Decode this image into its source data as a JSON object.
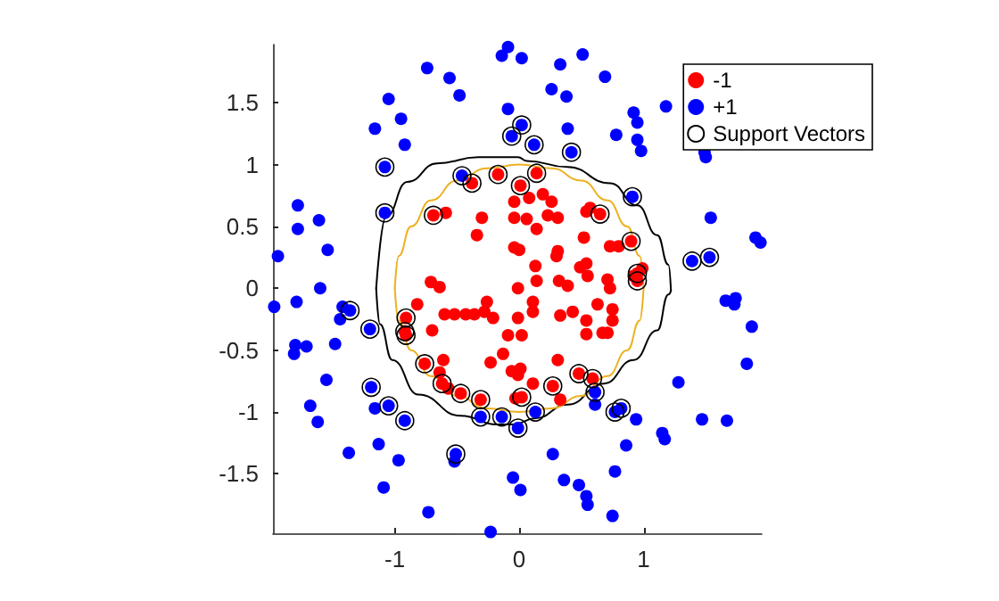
{
  "chart_data": {
    "type": "scatter",
    "xlim": [
      -1.98,
      1.95
    ],
    "ylim": [
      -1.98,
      1.97
    ],
    "xticks": [
      -1,
      0,
      1
    ],
    "yticks": [
      -1.5,
      -1,
      -0.5,
      0,
      0.5,
      1,
      1.5
    ],
    "legend": "top right",
    "marker": "circle",
    "series": [
      {
        "type": "line",
        "marker": "none",
        "color": "#000000",
        "x": [
          -1.15,
          -1.07,
          -0.9,
          -0.66,
          -0.33,
          -0.01,
          0.06,
          0.39,
          0.73,
          0.95,
          1.11,
          1.2,
          1.22
        ],
        "values": [
          0.0,
          0.58,
          0.86,
          1.01,
          1.06,
          1.06,
          1.03,
          0.98,
          0.85,
          0.67,
          0.43,
          0.19,
          -0.02
        ]
      },
      {
        "type": "line",
        "marker": "none",
        "color": "#000000",
        "x": [
          -1.15,
          -1.12,
          -1.02,
          -0.81,
          -0.47,
          -0.18,
          -0.04,
          0.13,
          0.39,
          0.68,
          0.92,
          1.11,
          1.2,
          1.22
        ],
        "values": [
          0.0,
          -0.29,
          -0.58,
          -0.86,
          -1.03,
          -1.1,
          -1.1,
          -1.05,
          -0.94,
          -0.77,
          -0.58,
          -0.34,
          -0.05,
          -0.02
        ]
      },
      {
        "type": "line",
        "marker": "none",
        "color": "#edb120",
        "x": [
          -1.0,
          -0.97,
          -0.87,
          -0.71,
          -0.5,
          -0.26,
          0.0,
          0.26,
          0.5,
          0.71,
          0.87,
          0.97,
          1.0
        ],
        "values": [
          0.0,
          0.26,
          0.5,
          0.71,
          0.87,
          0.97,
          1.0,
          0.97,
          0.87,
          0.71,
          0.5,
          0.26,
          0.0
        ]
      },
      {
        "type": "line",
        "marker": "none",
        "color": "#edb120",
        "x": [
          -1.0,
          -0.97,
          -0.87,
          -0.71,
          -0.5,
          -0.26,
          0.0,
          0.26,
          0.5,
          0.71,
          0.87,
          0.97,
          1.0
        ],
        "values": [
          0.0,
          -0.26,
          -0.5,
          -0.71,
          -0.87,
          -0.97,
          -1.0,
          -0.97,
          -0.87,
          -0.71,
          -0.5,
          -0.26,
          0.0
        ]
      },
      {
        "name": "-1",
        "color": "#ff0000",
        "x": [
          -0.38,
          -0.17,
          -0.69,
          0.14,
          0.01,
          0.65,
          0.9,
          0.95,
          0.95,
          -0.91,
          -0.92,
          -0.91,
          -0.76,
          -0.62,
          -0.47,
          -0.31,
          0.02,
          0.27,
          0.48,
          0.59,
          -0.59,
          -0.3,
          -0.34,
          -0.04,
          -0.04,
          -0.71,
          -0.64,
          -0.04,
          0.08,
          0.19,
          0.26,
          0.06,
          0.23,
          0.31,
          0.14,
          0.54,
          0.57,
          0.52,
          0.0,
          0.31,
          0.3,
          0.73,
          0.8,
          0.54,
          0.49,
          0.13,
          0.99,
          0.92,
          0.32,
          0.39,
          -0.01,
          0.14,
          0.55,
          0.73,
          0.71,
          -0.82,
          -0.7,
          -0.6,
          -0.52,
          -0.43,
          -0.36,
          -0.28,
          -0.26,
          -0.21,
          -0.09,
          -0.13,
          -0.23,
          -0.06,
          -0.61,
          -0.64,
          -0.57,
          -0.03,
          0.11,
          0.11,
          -0.01,
          0.33,
          0.43,
          0.54,
          0.63,
          0.75,
          0.75,
          0.54,
          0.67,
          0.71,
          0.02,
          0.01,
          -0.01,
          0.11,
          0.33,
          0.31
        ],
        "values": [
          0.85,
          0.92,
          0.59,
          0.93,
          0.83,
          0.6,
          0.38,
          0.12,
          0.06,
          -0.24,
          -0.35,
          -0.38,
          -0.61,
          -0.77,
          -0.85,
          -0.9,
          -0.88,
          -0.79,
          -0.69,
          -0.73,
          0.61,
          0.57,
          0.43,
          0.57,
          0.33,
          0.05,
          0.01,
          0.7,
          0.73,
          0.76,
          0.7,
          0.56,
          0.59,
          0.57,
          0.48,
          0.62,
          0.65,
          0.41,
          0.31,
          0.3,
          0.26,
          0.34,
          0.34,
          0.2,
          0.17,
          0.18,
          0.16,
          0.1,
          0.06,
          0.02,
          0.0,
          0.06,
          0.1,
          0.0,
          0.07,
          -0.13,
          -0.34,
          -0.21,
          -0.21,
          -0.21,
          -0.21,
          -0.19,
          -0.11,
          -0.24,
          -0.38,
          -0.53,
          -0.6,
          -0.67,
          -0.58,
          -0.68,
          -0.81,
          -0.89,
          -0.11,
          -0.19,
          -0.24,
          -0.22,
          -0.19,
          -0.26,
          -0.13,
          -0.17,
          -0.26,
          -0.37,
          -0.36,
          -0.36,
          -0.38,
          -0.65,
          -0.7,
          -0.77,
          -0.9,
          -0.58
        ]
      },
      {
        "name": "+1",
        "color": "#0000ff",
        "x": [
          -0.06,
          -1.08,
          -0.46,
          -1.08,
          0.02,
          0.12,
          0.42,
          0.91,
          1.39,
          1.53,
          -1.36,
          -1.2,
          -1.19,
          -1.05,
          -0.92,
          -0.51,
          -0.31,
          -0.14,
          0.61,
          0.77,
          0.82,
          0.13,
          -0.01,
          -0.09,
          -0.14,
          -0.74,
          -0.56,
          -0.48,
          -1.05,
          -0.95,
          -1.16,
          -0.92,
          -0.09,
          -1.78,
          -1.78,
          -1.61,
          -1.54,
          -1.94,
          -1.6,
          0.02,
          0.51,
          0.33,
          0.69,
          0.26,
          0.38,
          1.18,
          0.92,
          0.95,
          0.78,
          0.95,
          0.98,
          1.49,
          1.5,
          0.39,
          1.54,
          1.9,
          1.94,
          1.66,
          1.74,
          1.73,
          -1.97,
          -1.79,
          -1.42,
          -1.44,
          -1.8,
          -1.81,
          -1.71,
          -1.48,
          -1.55,
          -1.68,
          -1.62,
          -1.16,
          -1.37,
          -1.13,
          -0.97,
          -1.09,
          -0.52,
          -0.73,
          -0.23,
          -0.05,
          1.87,
          1.83,
          1.28,
          1.47,
          1.67,
          1.15,
          1.17,
          0.94,
          0.61,
          0.86,
          0.77,
          0.27,
          0.01,
          0.36,
          0.48,
          0.54,
          0.55,
          0.75
        ],
        "values": [
          1.23,
          0.98,
          0.91,
          0.61,
          1.32,
          1.16,
          1.1,
          0.74,
          0.22,
          0.25,
          -0.18,
          -0.33,
          -0.8,
          -0.95,
          -1.07,
          -1.34,
          -1.04,
          -1.04,
          -0.84,
          -1.0,
          -0.97,
          -1.0,
          -1.13,
          1.95,
          1.88,
          1.78,
          1.7,
          1.56,
          1.53,
          1.37,
          1.29,
          1.16,
          1.45,
          0.67,
          0.48,
          0.55,
          0.31,
          0.26,
          0.0,
          1.86,
          1.89,
          1.81,
          1.71,
          1.61,
          1.55,
          1.47,
          1.42,
          1.34,
          1.24,
          1.2,
          1.11,
          1.1,
          1.06,
          1.29,
          0.57,
          0.41,
          0.37,
          -0.1,
          -0.08,
          -0.13,
          -0.15,
          -0.11,
          -0.15,
          -0.25,
          -0.46,
          -0.53,
          -0.47,
          -0.45,
          -0.74,
          -0.95,
          -1.08,
          -0.97,
          -1.33,
          -1.26,
          -1.39,
          -1.61,
          -1.4,
          -1.81,
          -1.97,
          -1.53,
          -0.31,
          -0.61,
          -0.76,
          -1.06,
          -1.07,
          -1.17,
          -1.22,
          -1.06,
          -0.94,
          -1.27,
          -1.48,
          -1.34,
          -1.63,
          -1.55,
          -1.59,
          -1.68,
          -1.75,
          -1.84
        ]
      },
      {
        "name": "Support Vectors",
        "color": "#000000",
        "x": [
          -0.38,
          -0.17,
          -0.69,
          0.14,
          0.01,
          0.65,
          0.9,
          0.95,
          0.95,
          -0.91,
          -0.92,
          -0.91,
          -0.76,
          -0.62,
          -0.47,
          -0.31,
          0.02,
          0.27,
          0.48,
          0.59,
          -0.06,
          -1.08,
          -0.46,
          -1.08,
          0.02,
          0.12,
          0.42,
          0.91,
          1.39,
          1.53,
          -1.36,
          -1.2,
          -1.19,
          -1.05,
          -0.92,
          -0.51,
          -0.31,
          -0.14,
          0.61,
          0.77,
          0.82,
          0.13,
          -0.01
        ],
        "values": [
          0.85,
          0.92,
          0.59,
          0.93,
          0.83,
          0.6,
          0.38,
          0.12,
          0.06,
          -0.24,
          -0.35,
          -0.38,
          -0.61,
          -0.77,
          -0.85,
          -0.9,
          -0.88,
          -0.79,
          -0.69,
          -0.73,
          1.23,
          0.98,
          0.91,
          0.61,
          1.32,
          1.16,
          1.1,
          0.74,
          0.22,
          0.25,
          -0.18,
          -0.33,
          -0.8,
          -0.95,
          -1.07,
          -1.34,
          -1.04,
          -1.04,
          -0.84,
          -1.0,
          -0.97,
          -1.0,
          -1.13
        ]
      }
    ]
  }
}
